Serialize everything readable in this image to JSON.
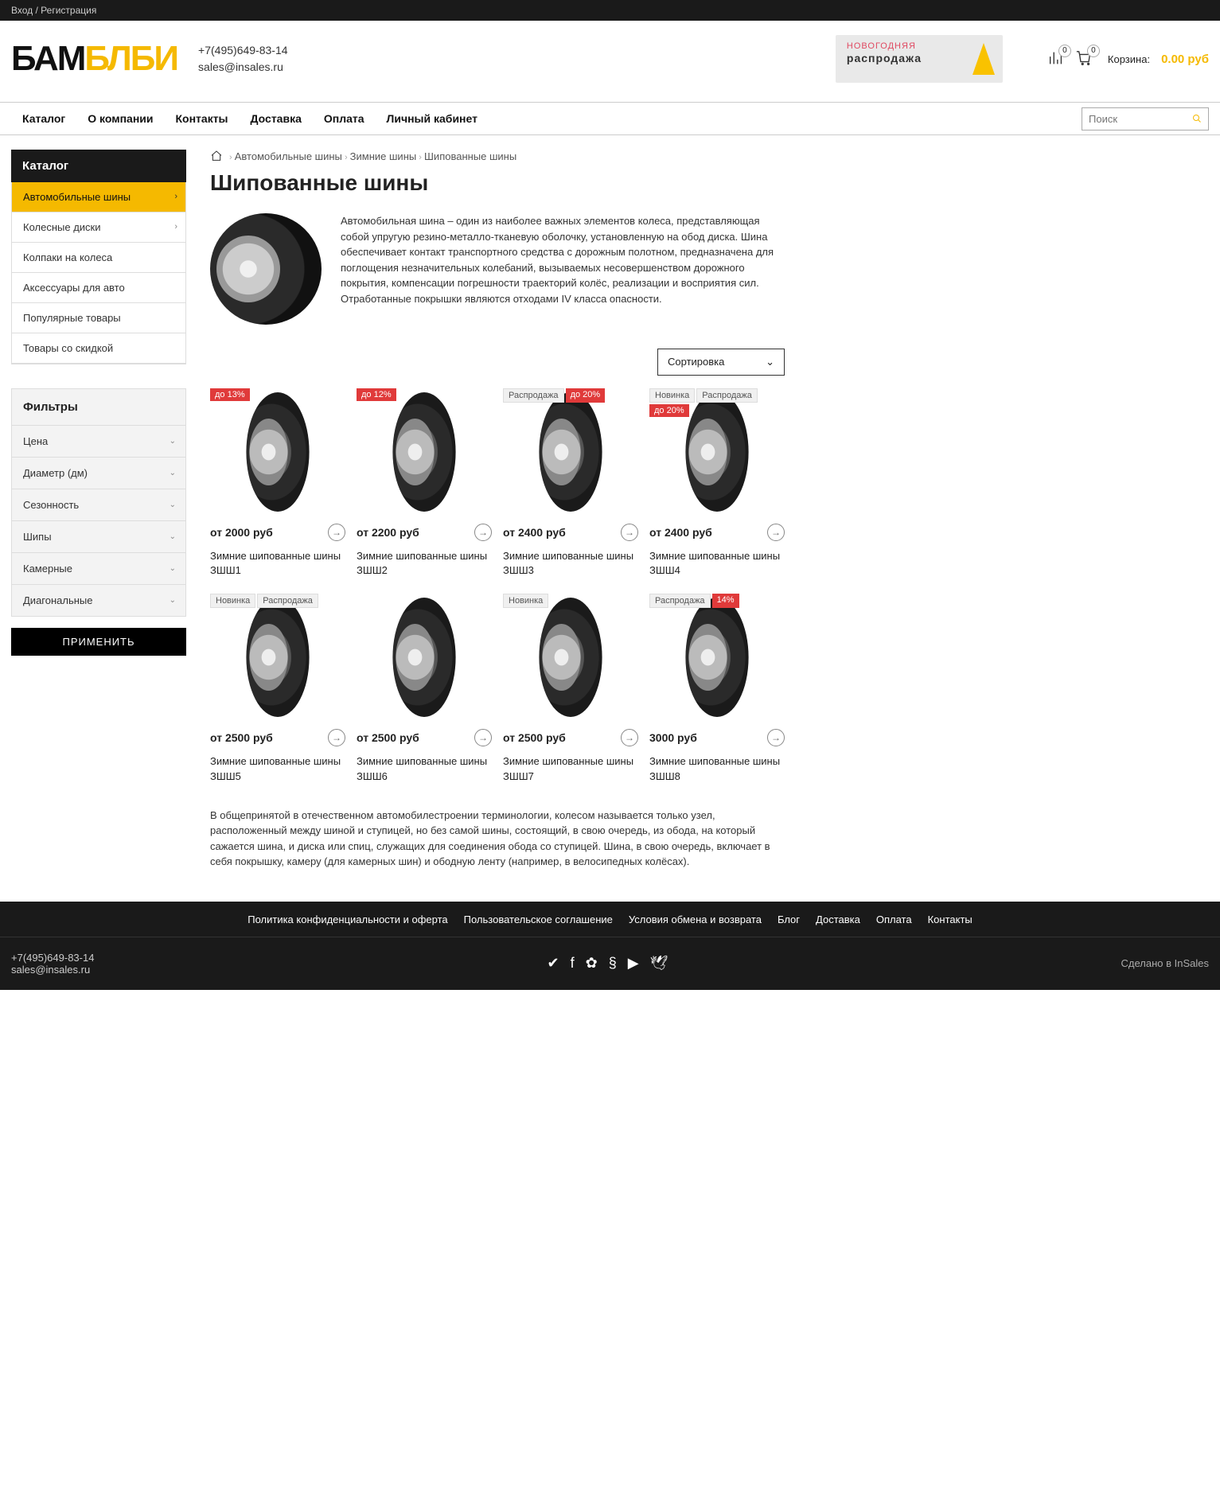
{
  "topbar": {
    "login": "Вход",
    "reg": "Регистрация"
  },
  "header": {
    "logo1": "БАМ",
    "logo2": "БЛБИ",
    "phone": "+7(495)649-83-14",
    "email": "sales@insales.ru",
    "banner_l1": "НОВОГОДНЯЯ",
    "banner_l2": "распродажа",
    "compare_count": "0",
    "cart_count": "0",
    "cart_label": "Корзина:",
    "cart_sum": "0.00 руб"
  },
  "nav": [
    "Каталог",
    "О компании",
    "Контакты",
    "Доставка",
    "Оплата",
    "Личный кабинет"
  ],
  "search_placeholder": "Поиск",
  "sidebar": {
    "title": "Каталог",
    "cats": [
      {
        "label": "Автомобильные шины",
        "active": true,
        "chev": true
      },
      {
        "label": "Колесные диски",
        "chev": true
      },
      {
        "label": "Колпаки на колеса"
      },
      {
        "label": "Аксессуары для авто"
      },
      {
        "label": "Популярные товары"
      },
      {
        "label": "Товары со скидкой"
      }
    ],
    "filter_title": "Фильтры",
    "filters": [
      "Цена",
      "Диаметр (дм)",
      "Сезонность",
      "Шипы",
      "Камерные",
      "Диагональные"
    ],
    "apply": "ПРИМЕНИТЬ"
  },
  "bread": [
    "Автомобильные шины",
    "Зимние шины",
    "Шипованные шины"
  ],
  "page_title": "Шипованные шины",
  "intro": "Автомобильная шина – один из наиболее важных элементов колеса, представляющая собой упругую резино-металло-тканевую оболочку, установленную на обод диска. Шина обеспечивает контакт транспортного средства с дорожным полотном, предназначена для поглощения незначительных колебаний, вызываемых несовершенством дорожного покрытия, компенсации погрешности траекторий колёс, реализации и восприятия сил. Отработанные покрышки являются отходами IV класса опасности.",
  "sort_label": "Сортировка",
  "products": [
    {
      "badges": [
        {
          "t": "до 13%",
          "c": "red"
        }
      ],
      "price": "от 2000 руб",
      "name": "Зимние шипованные шины ЗШШ1"
    },
    {
      "badges": [
        {
          "t": "до 12%",
          "c": "red"
        }
      ],
      "price": "от 2200 руб",
      "name": "Зимние шипованные шины ЗШШ2"
    },
    {
      "badges": [
        {
          "t": "Распродажа",
          "c": "gray"
        },
        {
          "t": "до 20%",
          "c": "red"
        }
      ],
      "price": "от 2400 руб",
      "name": "Зимние шипованные шины ЗШШ3"
    },
    {
      "badges": [
        {
          "t": "Новинка",
          "c": "gray"
        },
        {
          "t": "Распродажа",
          "c": "gray"
        },
        {
          "t": "до 20%",
          "c": "red"
        }
      ],
      "price": "от 2400 руб",
      "name": "Зимние шипованные шины ЗШШ4"
    },
    {
      "badges": [
        {
          "t": "Новинка",
          "c": "gray"
        },
        {
          "t": "Распродажа",
          "c": "gray"
        }
      ],
      "price": "от 2500 руб",
      "name": "Зимние шипованные шины ЗШШ5"
    },
    {
      "badges": [],
      "price": "от 2500 руб",
      "name": "Зимние шипованные шины ЗШШ6"
    },
    {
      "badges": [
        {
          "t": "Новинка",
          "c": "gray"
        }
      ],
      "price": "от 2500 руб",
      "name": "Зимние шипованные шины ЗШШ7"
    },
    {
      "badges": [
        {
          "t": "Распродажа",
          "c": "gray"
        },
        {
          "t": "14%",
          "c": "red"
        }
      ],
      "price": "3000 руб",
      "name": "Зимние шипованные шины ЗШШ8"
    }
  ],
  "bottom": "В общепринятой в отечественном автомобилестроении терминологии, колесом называется только узел, расположенный между шиной и ступицей, но без самой шины, состоящий, в свою очередь, из обода, на который сажается шина, и диска или спиц, служащих для соединения обода со ступицей. Шина, в свою очередь, включает в себя покрышку, камеру (для камерных шин) и ободную ленту (например, в велосипедных колёсах).",
  "footer": {
    "links": [
      "Политика конфиденциальности и оферта",
      "Пользовательское соглашение",
      "Условия обмена и возврата",
      "Блог",
      "Доставка",
      "Оплата",
      "Контакты"
    ],
    "phone": "+7(495)649-83-14",
    "email": "sales@insales.ru",
    "credit": "Сделано в InSales"
  }
}
